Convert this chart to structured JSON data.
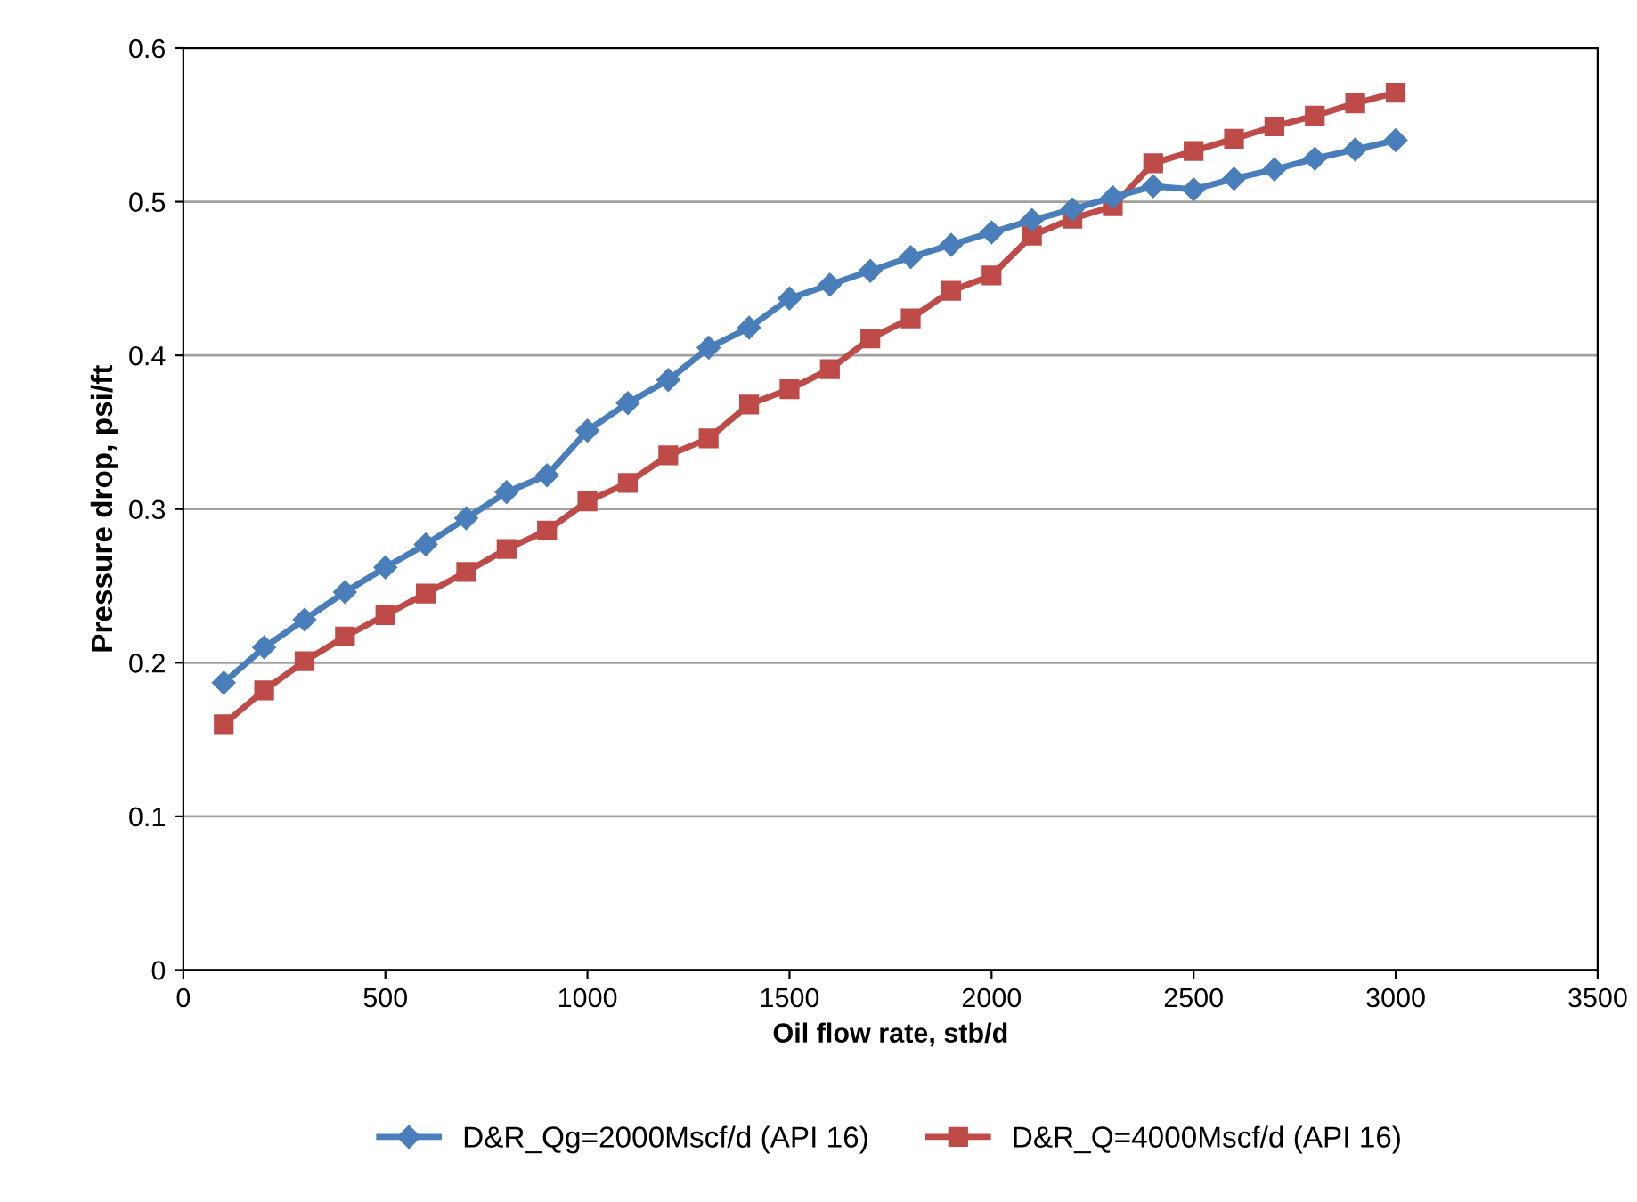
{
  "chart_data": {
    "type": "line",
    "xlabel": "Oil flow rate, stb/d",
    "ylabel": "Pressure drop, psi/ft",
    "x": [
      100,
      200,
      300,
      400,
      500,
      600,
      700,
      800,
      900,
      1000,
      1100,
      1200,
      1300,
      1400,
      1500,
      1600,
      1700,
      1800,
      1900,
      2000,
      2100,
      2200,
      2300,
      2400,
      2500,
      2600,
      2700,
      2800,
      2900,
      3000
    ],
    "series": [
      {
        "name": "D&R_Qg=2000Mscf/d (API 16)",
        "color": "#4a7ebb",
        "marker": "diamond",
        "values": [
          0.187,
          0.21,
          0.228,
          0.246,
          0.262,
          0.277,
          0.294,
          0.311,
          0.322,
          0.351,
          0.369,
          0.384,
          0.405,
          0.418,
          0.437,
          0.446,
          0.455,
          0.464,
          0.472,
          0.48,
          0.488,
          0.495,
          0.503,
          0.51,
          0.508,
          0.515,
          0.521,
          0.528,
          0.534,
          0.54
        ]
      },
      {
        "name": "D&R_Q=4000Mscf/d (API 16)",
        "color": "#be4b48",
        "marker": "square",
        "values": [
          0.16,
          0.182,
          0.201,
          0.217,
          0.231,
          0.245,
          0.259,
          0.274,
          0.286,
          0.305,
          0.317,
          0.335,
          0.346,
          0.368,
          0.378,
          0.391,
          0.411,
          0.424,
          0.442,
          0.452,
          0.478,
          0.489,
          0.497,
          0.525,
          0.533,
          0.541,
          0.549,
          0.556,
          0.564,
          0.571
        ]
      }
    ],
    "xlim": [
      0,
      3500
    ],
    "xticks": [
      0,
      500,
      1000,
      1500,
      2000,
      2500,
      3000,
      3500
    ],
    "ylim": [
      0,
      0.6
    ],
    "yticks": [
      0,
      0.1,
      0.2,
      0.3,
      0.4,
      0.5,
      0.6
    ],
    "grid": "y",
    "legend": "bottom",
    "line_style": "solid"
  }
}
